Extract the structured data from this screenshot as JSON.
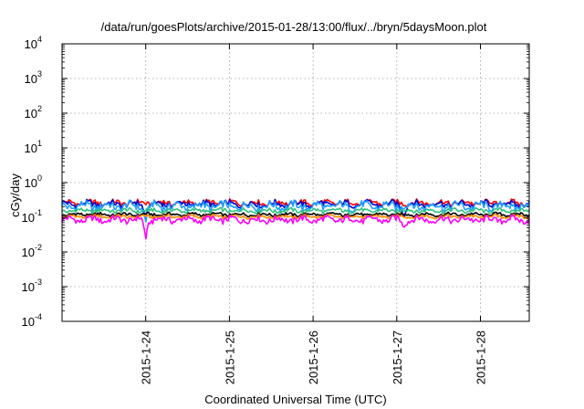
{
  "chart_data": {
    "type": "line",
    "title": "/data/run/goesPlots/archive/2015-01-28/13:00/flux/../bryn/5daysMoon.plot",
    "xlabel": "Coordinated Universal Time (UTC)",
    "ylabel": "cGy/day",
    "yscale": "log",
    "ylim": [
      0.0001,
      10000
    ],
    "xlim": [
      "2015-01-23 00:00",
      "2015-01-28 14:00"
    ],
    "grid": true,
    "x_ticks": [
      "2015-1-24",
      "2015-1-25",
      "2015-1-26",
      "2015-1-27",
      "2015-1-28"
    ],
    "y_ticks": [
      {
        "base": "10",
        "exp": "4"
      },
      {
        "base": "10",
        "exp": "3"
      },
      {
        "base": "10",
        "exp": "2"
      },
      {
        "base": "10",
        "exp": "1"
      },
      {
        "base": "10",
        "exp": "0"
      },
      {
        "base": "10",
        "exp": "-1"
      },
      {
        "base": "10",
        "exp": "-2"
      },
      {
        "base": "10",
        "exp": "-3"
      },
      {
        "base": "10",
        "exp": "-4"
      }
    ],
    "series": [
      {
        "color": "#ff0000",
        "level": 0.26,
        "variation": 0.13,
        "dips": []
      },
      {
        "color": "#0000cc",
        "level": 0.24,
        "variation": 0.15,
        "dips": [
          [
            "2015-01-24 00:00",
            0.08
          ],
          [
            "2015-01-27 02:00",
            0.09
          ]
        ]
      },
      {
        "color": "#1ea0ff",
        "level": 0.21,
        "variation": 0.2,
        "dips": [
          [
            "2015-01-24 00:00",
            0.07
          ]
        ]
      },
      {
        "color": "#2ec27e",
        "level": 0.155,
        "variation": 0.1,
        "dips": []
      },
      {
        "color": "#000000",
        "level": 0.12,
        "variation": 0.08,
        "dips": []
      },
      {
        "color": "#ff8c00",
        "level": 0.105,
        "variation": 0.08,
        "dips": []
      },
      {
        "color": "#ff00ff",
        "level": 0.085,
        "variation": 0.16,
        "dips": [
          [
            "2015-01-24 00:00",
            0.022
          ],
          [
            "2015-01-27 02:00",
            0.05
          ]
        ]
      }
    ]
  }
}
